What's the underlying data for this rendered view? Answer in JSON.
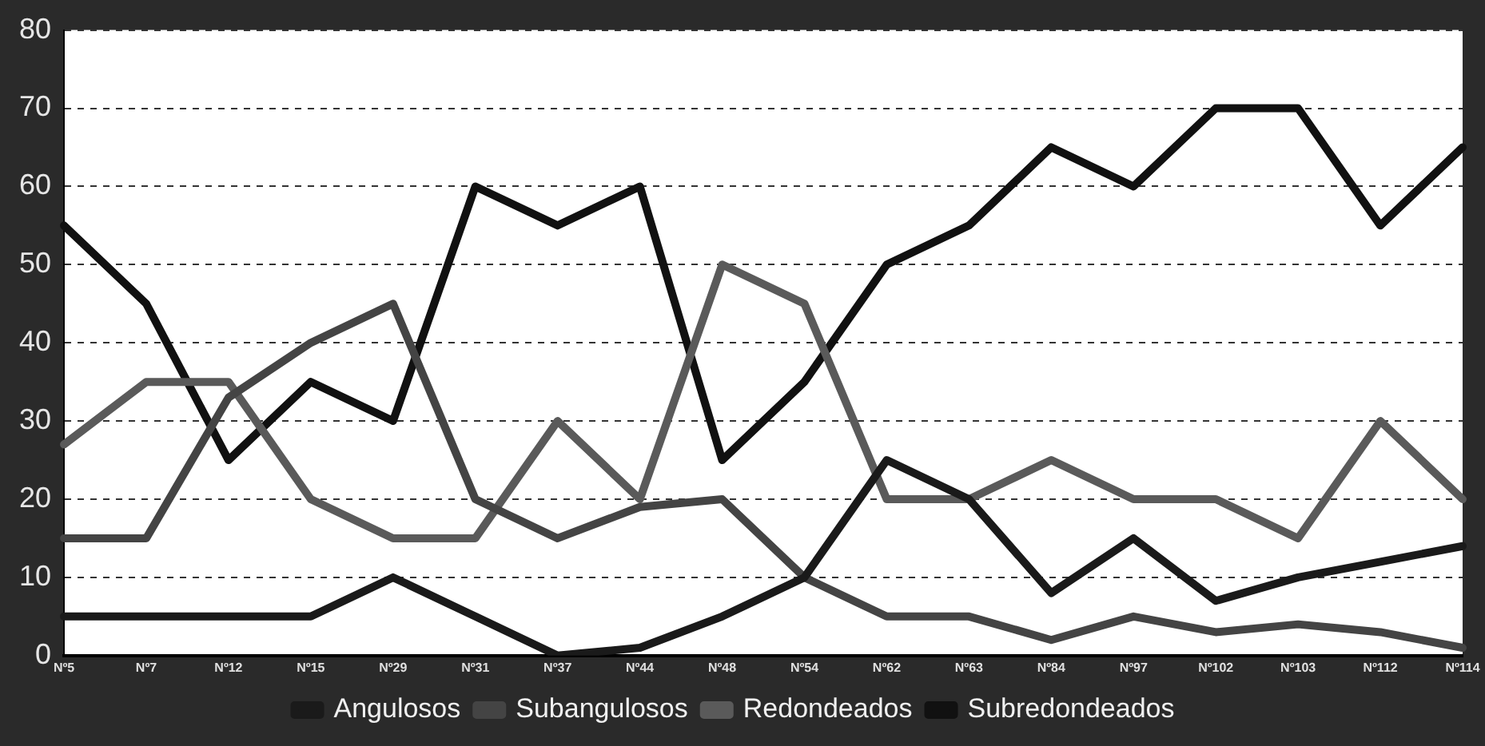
{
  "chart_data": {
    "type": "line",
    "categories": [
      "Nº5",
      "Nº7",
      "Nº12",
      "Nº15",
      "Nº29",
      "Nº31",
      "Nº37",
      "Nº44",
      "Nº48",
      "Nº54",
      "Nº62",
      "Nº63",
      "Nº84",
      "Nº97",
      "Nº102",
      "Nº103",
      "Nº112",
      "Nº114"
    ],
    "series": [
      {
        "name": "Angulosos",
        "color": "#1a1a1a",
        "values": [
          5,
          5,
          5,
          5,
          10,
          5,
          0,
          1,
          5,
          10,
          25,
          20,
          8,
          15,
          7,
          10,
          12,
          14
        ]
      },
      {
        "name": "Subangulosos",
        "color": "#444444",
        "values": [
          15,
          15,
          33,
          40,
          45,
          20,
          15,
          19,
          20,
          10,
          5,
          5,
          2,
          5,
          3,
          4,
          3,
          1
        ]
      },
      {
        "name": "Redondeados",
        "color": "#5a5a5a",
        "values": [
          27,
          35,
          35,
          20,
          15,
          15,
          30,
          20,
          50,
          45,
          20,
          20,
          25,
          20,
          20,
          15,
          30,
          20
        ]
      },
      {
        "name": "Subredondeados",
        "color": "#111111",
        "values": [
          55,
          45,
          25,
          35,
          30,
          60,
          55,
          60,
          25,
          35,
          50,
          55,
          65,
          60,
          70,
          70,
          55,
          65
        ]
      }
    ],
    "ylim": [
      0,
      80
    ],
    "yticks": [
      0,
      10,
      20,
      30,
      40,
      50,
      60,
      70,
      80
    ],
    "grid": "y",
    "legend": "bottom",
    "marker": "none",
    "line_style": "solid"
  }
}
